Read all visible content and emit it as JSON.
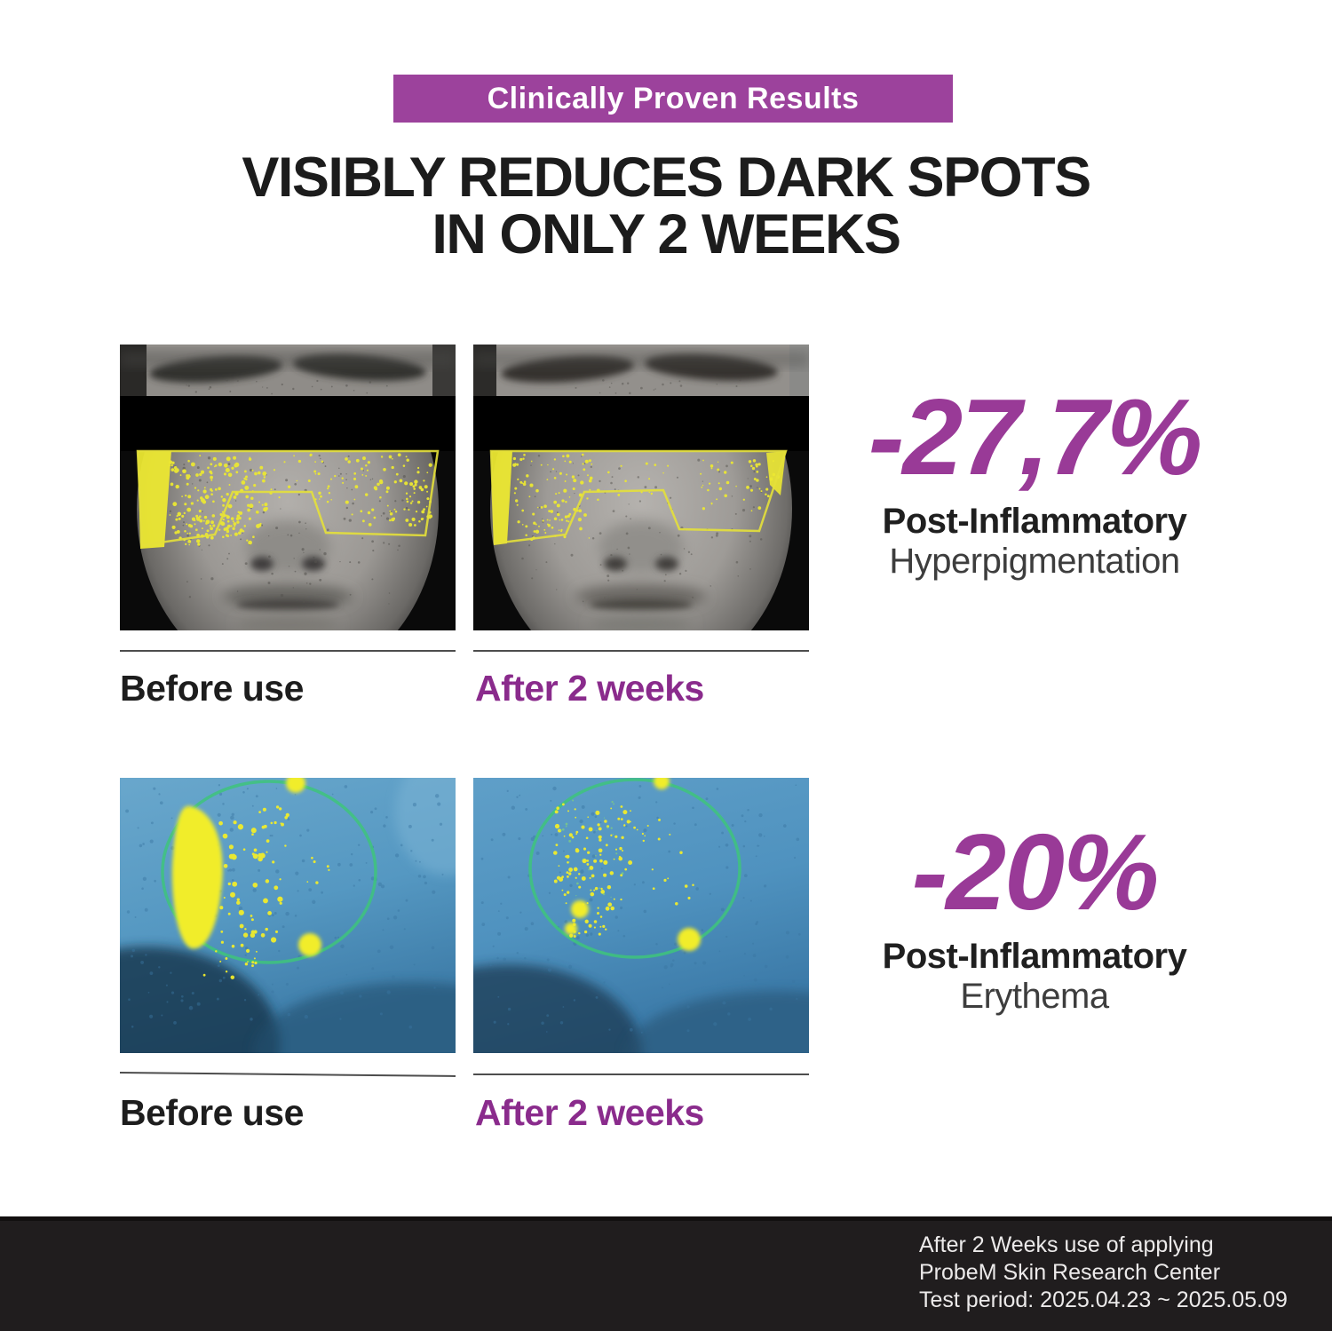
{
  "badge": {
    "label": "Clinically Proven Results"
  },
  "heading": {
    "line1": "VISIBLY REDUCES DARK SPOTS",
    "line2": "IN ONLY 2 WEEKS"
  },
  "comparisons": [
    {
      "id": "hyperpigmentation",
      "before_label": "Before use",
      "after_label": "After 2 weeks",
      "stat_value": "-27,7%",
      "stat_label_bold": "Post-Inflammatory",
      "stat_label_light": "Hyperpigmentation"
    },
    {
      "id": "erythema",
      "before_label": "Before use",
      "after_label": "After 2 weeks",
      "stat_value": "-20%",
      "stat_label_bold": "Post-Inflammatory",
      "stat_label_light": "Erythema"
    }
  ],
  "footer": {
    "lines": [
      "After 2 Weeks use of applying",
      "ProbeM Skin Research Center",
      "Test period: 2025.04.23 ~ 2025.05.09"
    ]
  },
  "colors": {
    "badge_purple": "#9c429c",
    "stat_purple": "#993a97",
    "after_label_purple": "#8a2b8c",
    "heading_black": "#1c1c1c",
    "footer_bg": "#201d1e",
    "highlight_yellow": "#ece832",
    "marker_green": "#3ec47b",
    "uv_blue": "#5b9ec7"
  }
}
